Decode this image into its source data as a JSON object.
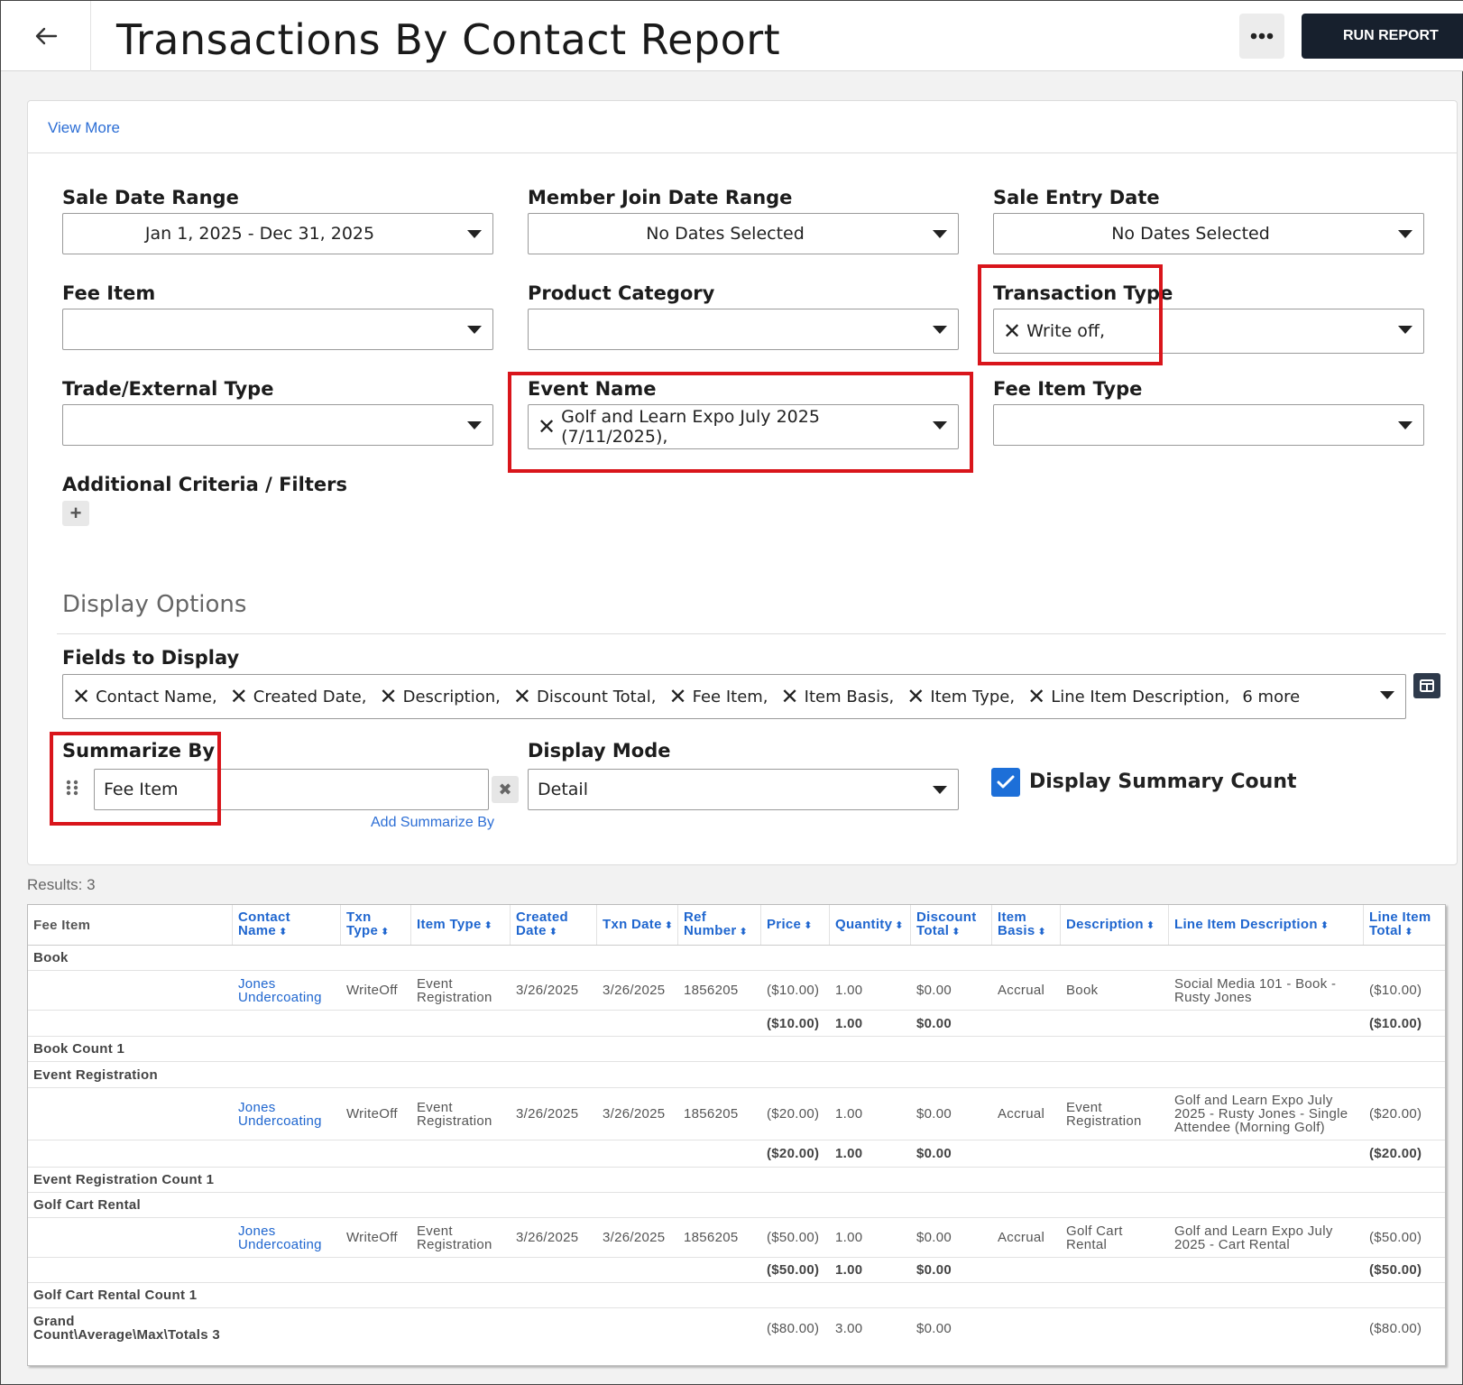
{
  "header": {
    "title": "Transactions By Contact Report",
    "run_label": "RUN REPORT"
  },
  "panel": {
    "view_more": "View More"
  },
  "filters": {
    "sale_date_range": {
      "label": "Sale Date Range",
      "value": "Jan 1, 2025 - Dec 31, 2025"
    },
    "member_join_date_range": {
      "label": "Member Join Date Range",
      "value": "No Dates Selected"
    },
    "sale_entry_date": {
      "label": "Sale Entry Date",
      "value": "No Dates Selected"
    },
    "fee_item": {
      "label": "Fee Item",
      "value": ""
    },
    "product_category": {
      "label": "Product Category",
      "value": ""
    },
    "transaction_type": {
      "label": "Transaction Type",
      "value": "Write off,"
    },
    "trade_external_type": {
      "label": "Trade/External Type",
      "value": ""
    },
    "event_name": {
      "label": "Event Name",
      "value": "Golf and Learn Expo July 2025 (7/11/2025),"
    },
    "fee_item_type": {
      "label": "Fee Item Type",
      "value": ""
    },
    "additional_criteria": {
      "label": "Additional Criteria / Filters"
    }
  },
  "display_options": {
    "title": "Display Options",
    "fields_label": "Fields to Display",
    "fields": [
      "Contact Name,",
      "Created Date,",
      "Description,",
      "Discount Total,",
      "Fee Item,",
      "Item Basis,",
      "Item Type,",
      "Line Item Description,"
    ],
    "more_count": "6 more",
    "summarize_label": "Summarize By",
    "summarize_value": "Fee Item",
    "add_summarize": "Add Summarize By",
    "display_mode_label": "Display Mode",
    "display_mode_value": "Detail",
    "summary_count_label": "Display Summary Count",
    "summary_count_checked": true
  },
  "results": {
    "label": "Results: 3",
    "headers": [
      "Fee Item",
      "Contact Name",
      "Txn Type",
      "Item Type",
      "Created Date",
      "Txn Date",
      "Ref Number",
      "Price",
      "Quantity",
      "Discount Total",
      "Item Basis",
      "Description",
      "Line Item Description",
      "Line Item Total"
    ],
    "groups": [
      {
        "name": "Book",
        "row": {
          "contact": "Jones Undercoating",
          "txn_type": "WriteOff",
          "item_type": "Event Registration",
          "created": "3/26/2025",
          "txn_date": "3/26/2025",
          "ref": "1856205",
          "price": "($10.00)",
          "quantity": "1.00",
          "discount": "$0.00",
          "basis": "Accrual",
          "description": "Book",
          "line_desc": "Social Media 101 - Book - Rusty Jones",
          "line_total": "($10.00)"
        },
        "subtotal": {
          "price": "($10.00)",
          "quantity": "1.00",
          "discount": "$0.00",
          "line_total": "($10.00)"
        },
        "count": "Book Count 1"
      },
      {
        "name": "Event Registration",
        "row": {
          "contact": "Jones Undercoating",
          "txn_type": "WriteOff",
          "item_type": "Event Registration",
          "created": "3/26/2025",
          "txn_date": "3/26/2025",
          "ref": "1856205",
          "price": "($20.00)",
          "quantity": "1.00",
          "discount": "$0.00",
          "basis": "Accrual",
          "description": "Event Registration",
          "line_desc": "Golf and Learn Expo July 2025 - Rusty Jones - Single Attendee (Morning Golf)",
          "line_total": "($20.00)"
        },
        "subtotal": {
          "price": "($20.00)",
          "quantity": "1.00",
          "discount": "$0.00",
          "line_total": "($20.00)"
        },
        "count": "Event Registration Count 1"
      },
      {
        "name": "Golf Cart Rental",
        "row": {
          "contact": "Jones Undercoating",
          "txn_type": "WriteOff",
          "item_type": "Event Registration",
          "created": "3/26/2025",
          "txn_date": "3/26/2025",
          "ref": "1856205",
          "price": "($50.00)",
          "quantity": "1.00",
          "discount": "$0.00",
          "basis": "Accrual",
          "description": "Golf Cart Rental",
          "line_desc": "Golf and Learn Expo July 2025 - Cart Rental",
          "line_total": "($50.00)"
        },
        "subtotal": {
          "price": "($50.00)",
          "quantity": "1.00",
          "discount": "$0.00",
          "line_total": "($50.00)"
        },
        "count": "Golf Cart Rental Count 1"
      }
    ],
    "grand": {
      "label": "Grand Count\\Average\\Max\\Totals 3",
      "price": "($80.00)",
      "quantity": "3.00",
      "discount": "$0.00",
      "line_total": "($80.00)"
    }
  }
}
